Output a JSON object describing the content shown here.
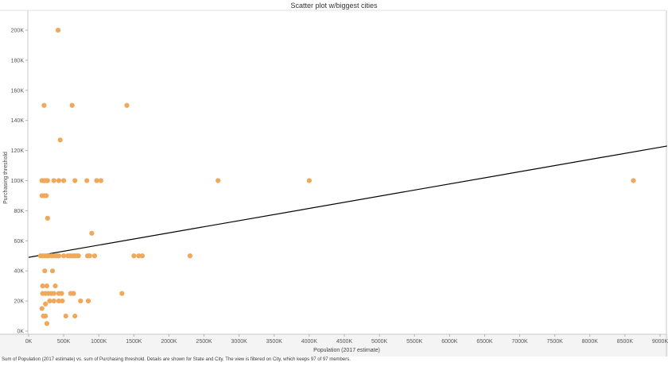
{
  "header": {
    "title": "Scatter plot w/biggest cities"
  },
  "footer": {
    "caption": "Sum of Population (2017 estimate) vs. sum of Purchasing threshold.  Details are shown for State and City. The view is filtered on City, which keeps 97 of 97 members."
  },
  "chart_data": {
    "type": "scatter",
    "title": "Scatter plot w/biggest cities",
    "xlabel": "Population (2017 estimate)",
    "ylabel": "Purchasing threshold",
    "xlim": [
      0,
      9000000
    ],
    "ylim": [
      0,
      200000
    ],
    "x_ticks": [
      0,
      500000,
      1000000,
      1500000,
      2000000,
      2500000,
      3000000,
      3500000,
      4000000,
      4500000,
      5000000,
      5500000,
      6000000,
      6500000,
      7000000,
      7500000,
      8000000,
      8500000,
      9000000
    ],
    "x_tick_labels": [
      "0K",
      "500K",
      "1000K",
      "1500K",
      "2000K",
      "2500K",
      "3000K",
      "3500K",
      "4000K",
      "4500K",
      "5000K",
      "5500K",
      "6000K",
      "6500K",
      "7000K",
      "7500K",
      "8000K",
      "8500K",
      "9000K"
    ],
    "y_ticks": [
      0,
      20000,
      40000,
      60000,
      80000,
      100000,
      120000,
      140000,
      160000,
      180000,
      200000
    ],
    "y_tick_labels": [
      "0K",
      "20K",
      "40K",
      "60K",
      "80K",
      "100K",
      "120K",
      "140K",
      "160K",
      "180K",
      "200K"
    ],
    "point_color": "#f0a85a",
    "trend_color": "#000000",
    "trend_line": {
      "x": [
        0,
        9100000
      ],
      "y": [
        49000,
        123000
      ]
    },
    "grid": false,
    "points": [
      {
        "x": 420000,
        "y": 200000
      },
      {
        "x": 220000,
        "y": 150000
      },
      {
        "x": 620000,
        "y": 150000
      },
      {
        "x": 1400000,
        "y": 150000
      },
      {
        "x": 450000,
        "y": 127000
      },
      {
        "x": 190000,
        "y": 100000
      },
      {
        "x": 220000,
        "y": 100000
      },
      {
        "x": 250000,
        "y": 100000
      },
      {
        "x": 270000,
        "y": 100000
      },
      {
        "x": 360000,
        "y": 100000
      },
      {
        "x": 430000,
        "y": 100000
      },
      {
        "x": 500000,
        "y": 100000
      },
      {
        "x": 660000,
        "y": 100000
      },
      {
        "x": 830000,
        "y": 100000
      },
      {
        "x": 970000,
        "y": 100000
      },
      {
        "x": 1030000,
        "y": 100000
      },
      {
        "x": 2700000,
        "y": 100000
      },
      {
        "x": 4000000,
        "y": 100000
      },
      {
        "x": 8620000,
        "y": 100000
      },
      {
        "x": 190000,
        "y": 90000
      },
      {
        "x": 220000,
        "y": 90000
      },
      {
        "x": 250000,
        "y": 90000
      },
      {
        "x": 270000,
        "y": 75000
      },
      {
        "x": 900000,
        "y": 65000
      },
      {
        "x": 170000,
        "y": 50000
      },
      {
        "x": 200000,
        "y": 50000
      },
      {
        "x": 230000,
        "y": 50000
      },
      {
        "x": 260000,
        "y": 50000
      },
      {
        "x": 290000,
        "y": 50000
      },
      {
        "x": 330000,
        "y": 50000
      },
      {
        "x": 370000,
        "y": 50000
      },
      {
        "x": 400000,
        "y": 50000
      },
      {
        "x": 430000,
        "y": 50000
      },
      {
        "x": 500000,
        "y": 50000
      },
      {
        "x": 560000,
        "y": 50000
      },
      {
        "x": 590000,
        "y": 50000
      },
      {
        "x": 620000,
        "y": 50000
      },
      {
        "x": 650000,
        "y": 50000
      },
      {
        "x": 680000,
        "y": 50000
      },
      {
        "x": 710000,
        "y": 50000
      },
      {
        "x": 840000,
        "y": 50000
      },
      {
        "x": 870000,
        "y": 50000
      },
      {
        "x": 940000,
        "y": 50000
      },
      {
        "x": 1500000,
        "y": 50000
      },
      {
        "x": 1570000,
        "y": 50000
      },
      {
        "x": 1620000,
        "y": 50000
      },
      {
        "x": 2300000,
        "y": 50000
      },
      {
        "x": 230000,
        "y": 40000
      },
      {
        "x": 340000,
        "y": 40000
      },
      {
        "x": 200000,
        "y": 30000
      },
      {
        "x": 260000,
        "y": 30000
      },
      {
        "x": 380000,
        "y": 30000
      },
      {
        "x": 200000,
        "y": 25000
      },
      {
        "x": 240000,
        "y": 25000
      },
      {
        "x": 280000,
        "y": 25000
      },
      {
        "x": 320000,
        "y": 25000
      },
      {
        "x": 360000,
        "y": 25000
      },
      {
        "x": 430000,
        "y": 25000
      },
      {
        "x": 470000,
        "y": 25000
      },
      {
        "x": 600000,
        "y": 25000
      },
      {
        "x": 640000,
        "y": 25000
      },
      {
        "x": 1330000,
        "y": 25000
      },
      {
        "x": 300000,
        "y": 20000
      },
      {
        "x": 360000,
        "y": 20000
      },
      {
        "x": 430000,
        "y": 20000
      },
      {
        "x": 480000,
        "y": 20000
      },
      {
        "x": 740000,
        "y": 20000
      },
      {
        "x": 850000,
        "y": 20000
      },
      {
        "x": 240000,
        "y": 18000
      },
      {
        "x": 190000,
        "y": 15000
      },
      {
        "x": 210000,
        "y": 10000
      },
      {
        "x": 240000,
        "y": 10000
      },
      {
        "x": 530000,
        "y": 10000
      },
      {
        "x": 660000,
        "y": 10000
      },
      {
        "x": 260000,
        "y": 5000
      }
    ]
  }
}
